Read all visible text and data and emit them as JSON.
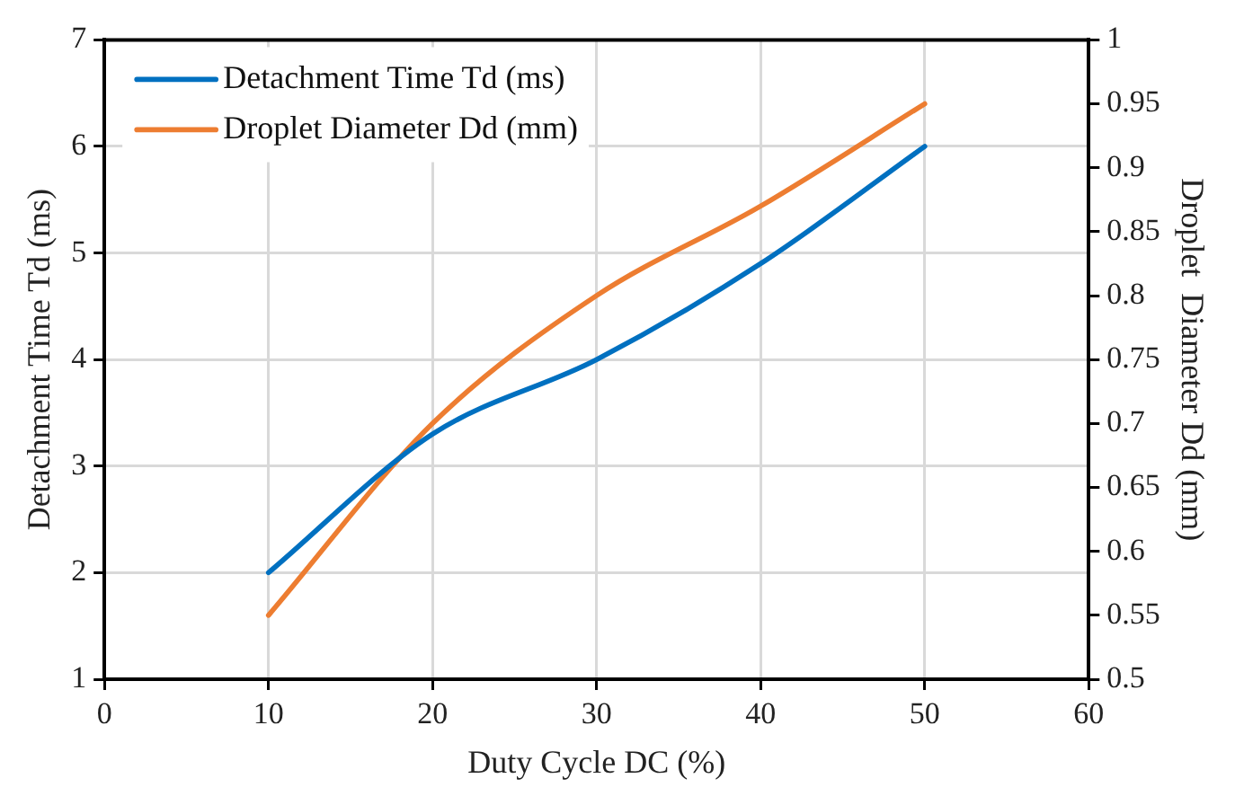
{
  "chart_data": {
    "type": "line",
    "xlabel": "Duty Cycle DC (%)",
    "ylabel": "Detachment Time Td (ms)",
    "y2label": "Droplet  Diameter Dd (mm)",
    "x": [
      10,
      20,
      30,
      40,
      50
    ],
    "series": [
      {
        "name": "Detachment Time Td (ms)",
        "color": "#0070c0",
        "values": [
          2.0,
          3.3,
          4.0,
          4.9,
          6.0
        ]
      },
      {
        "name": "Droplet Diameter Dd (mm)",
        "color": "#ed7d31",
        "axis": "y2",
        "values": [
          0.55,
          0.7,
          0.8,
          0.87,
          0.95
        ]
      }
    ],
    "xlim": [
      0,
      60
    ],
    "xticks": [
      0,
      10,
      20,
      30,
      40,
      50,
      60
    ],
    "ylim": [
      1,
      7
    ],
    "yticks": [
      1,
      2,
      3,
      4,
      5,
      6,
      7
    ],
    "y2lim": [
      0.5,
      1
    ],
    "y2ticks": [
      0.5,
      0.55,
      0.6,
      0.65,
      0.7,
      0.75,
      0.8,
      0.85,
      0.9,
      0.95,
      1
    ],
    "grid": true,
    "legend": "top left",
    "marker": "none",
    "line_style": "solid"
  }
}
